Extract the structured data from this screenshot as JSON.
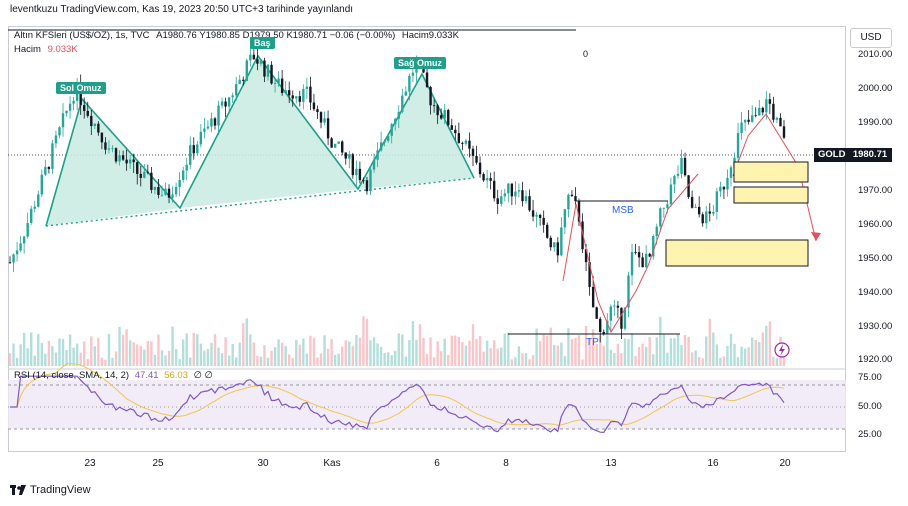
{
  "caption": "leventkuzu TradingView.com, Kas 19, 2023 20:50 UTC+3 tarihinde yayınlandı",
  "legend": {
    "symbol": "Altın KFSleri (US$/OZ), 1s, TVC",
    "ohlc": "A1980.76  Y1980.85  D1979.50  K1980.71  −0.06 (−0.00%)",
    "volume": "Hacim9.033K"
  },
  "volume_label": {
    "name": "Hacim",
    "value": "9.033K"
  },
  "currency_button": "USD",
  "price_tag": {
    "symbol": "GOLD",
    "price": "1980.71"
  },
  "zero_label": "0",
  "rsi_legend": {
    "name": "RSI (14, close, SMA, 14, 2)",
    "rsi": "47.41",
    "sma": "56.03",
    "extra": "∅ ∅"
  },
  "footer_logo": "TradingView",
  "annotations": {
    "left_shoulder": "Sol Omuz",
    "head": "Baş",
    "right_shoulder": "Sağ Omuz",
    "msb": "MSB",
    "tp": "TP"
  },
  "colors": {
    "up": "#26a69a",
    "down": "#131722",
    "pattern_fill": "#c8ebe1",
    "pattern_line": "#1f9e89",
    "zone_fill": "#fff3b0",
    "rsi": "#7e57c2",
    "rsi_sma": "#f3c44f",
    "arrow": "#e0525a"
  },
  "chart_data": {
    "type": "line",
    "y_ticks": [
      "2010.00",
      "2000.00",
      "1990.00",
      "1980.00",
      "1970.00",
      "1960.00",
      "1950.00",
      "1940.00",
      "1930.00",
      "1920.00"
    ],
    "x_ticks": [
      "23",
      "25",
      "30",
      "Kas",
      "6",
      "8",
      "13",
      "16",
      "20"
    ],
    "ylim": [
      1920,
      2012
    ],
    "rsi_ticks": [
      "75.00",
      "50.00",
      "25.00"
    ],
    "price_points": [
      {
        "t": 0,
        "p": 1948
      },
      {
        "t": 3,
        "p": 1958
      },
      {
        "t": 7,
        "p": 1975
      },
      {
        "t": 12,
        "p": 1996
      },
      {
        "t": 18,
        "p": 1980
      },
      {
        "t": 24,
        "p": 1972
      },
      {
        "t": 29,
        "p": 1966
      },
      {
        "t": 34,
        "p": 1980
      },
      {
        "t": 40,
        "p": 1992
      },
      {
        "t": 45,
        "p": 2005
      },
      {
        "t": 50,
        "p": 1996
      },
      {
        "t": 55,
        "p": 1994
      },
      {
        "t": 60,
        "p": 1980
      },
      {
        "t": 66,
        "p": 1970
      },
      {
        "t": 70,
        "p": 1985
      },
      {
        "t": 75,
        "p": 2003
      },
      {
        "t": 78,
        "p": 1992
      },
      {
        "t": 82,
        "p": 1985
      },
      {
        "t": 86,
        "p": 1975
      },
      {
        "t": 90,
        "p": 1966
      },
      {
        "t": 94,
        "p": 1969
      },
      {
        "t": 98,
        "p": 1958
      },
      {
        "t": 101,
        "p": 1950
      },
      {
        "t": 103,
        "p": 1966
      },
      {
        "t": 105,
        "p": 1962
      },
      {
        "t": 107,
        "p": 1940
      },
      {
        "t": 109,
        "p": 1928
      },
      {
        "t": 111,
        "p": 1935
      },
      {
        "t": 113,
        "p": 1932
      },
      {
        "t": 115,
        "p": 1950
      },
      {
        "t": 118,
        "p": 1948
      },
      {
        "t": 120,
        "p": 1960
      },
      {
        "t": 122,
        "p": 1968
      },
      {
        "t": 124,
        "p": 1975
      },
      {
        "t": 126,
        "p": 1962
      },
      {
        "t": 129,
        "p": 1960
      },
      {
        "t": 132,
        "p": 1970
      },
      {
        "t": 135,
        "p": 1985
      },
      {
        "t": 138,
        "p": 1988
      },
      {
        "t": 140,
        "p": 1993
      },
      {
        "t": 143,
        "p": 1981
      }
    ]
  }
}
